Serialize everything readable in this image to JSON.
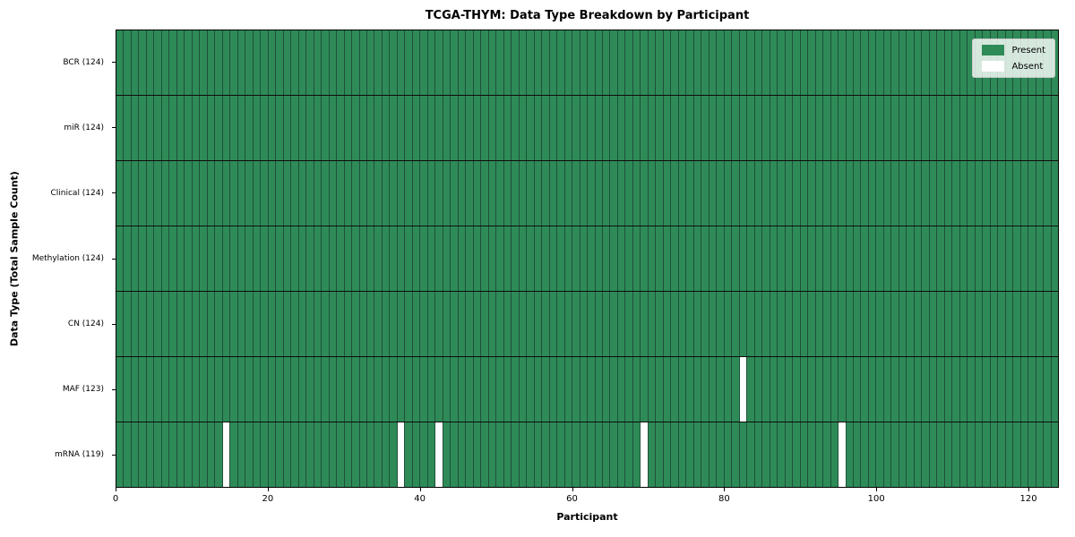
{
  "colors": {
    "present": "#2e8b57",
    "absent": "#ffffff",
    "cell_edge": "#20503a",
    "row_separator": "#0d0d0d",
    "plot_border": "#000000",
    "legend_background": "rgba(255,255,255,0.8)",
    "legend_border": "#c8c8c8"
  },
  "chart_data": {
    "type": "heatmap",
    "title": "TCGA-THYM: Data Type Breakdown by Participant",
    "xlabel": "Participant",
    "ylabel": "Data Type (Total Sample Count)",
    "x_range": [
      0,
      124
    ],
    "n_participants": 124,
    "x_ticks": [
      0,
      20,
      40,
      60,
      80,
      100,
      120
    ],
    "grid": "off",
    "legend_position": "upper right",
    "legend": [
      {
        "label": "Present",
        "color": "#2e8b57"
      },
      {
        "label": "Absent",
        "color": "#ffffff"
      }
    ],
    "rows": [
      {
        "data_type": "BCR",
        "total_samples": 124,
        "label": "BCR (124)",
        "absent_participants": []
      },
      {
        "data_type": "miR",
        "total_samples": 124,
        "label": "miR (124)",
        "absent_participants": []
      },
      {
        "data_type": "Clinical",
        "total_samples": 124,
        "label": "Clinical (124)",
        "absent_participants": []
      },
      {
        "data_type": "Methylation",
        "total_samples": 124,
        "label": "Methylation (124)",
        "absent_participants": []
      },
      {
        "data_type": "CN",
        "total_samples": 124,
        "label": "CN (124)",
        "absent_participants": []
      },
      {
        "data_type": "MAF",
        "total_samples": 123,
        "label": "MAF (123)",
        "absent_participants": [
          82
        ]
      },
      {
        "data_type": "mRNA",
        "total_samples": 119,
        "label": "mRNA (119)",
        "absent_participants": [
          14,
          37,
          42,
          69,
          95
        ]
      }
    ]
  }
}
